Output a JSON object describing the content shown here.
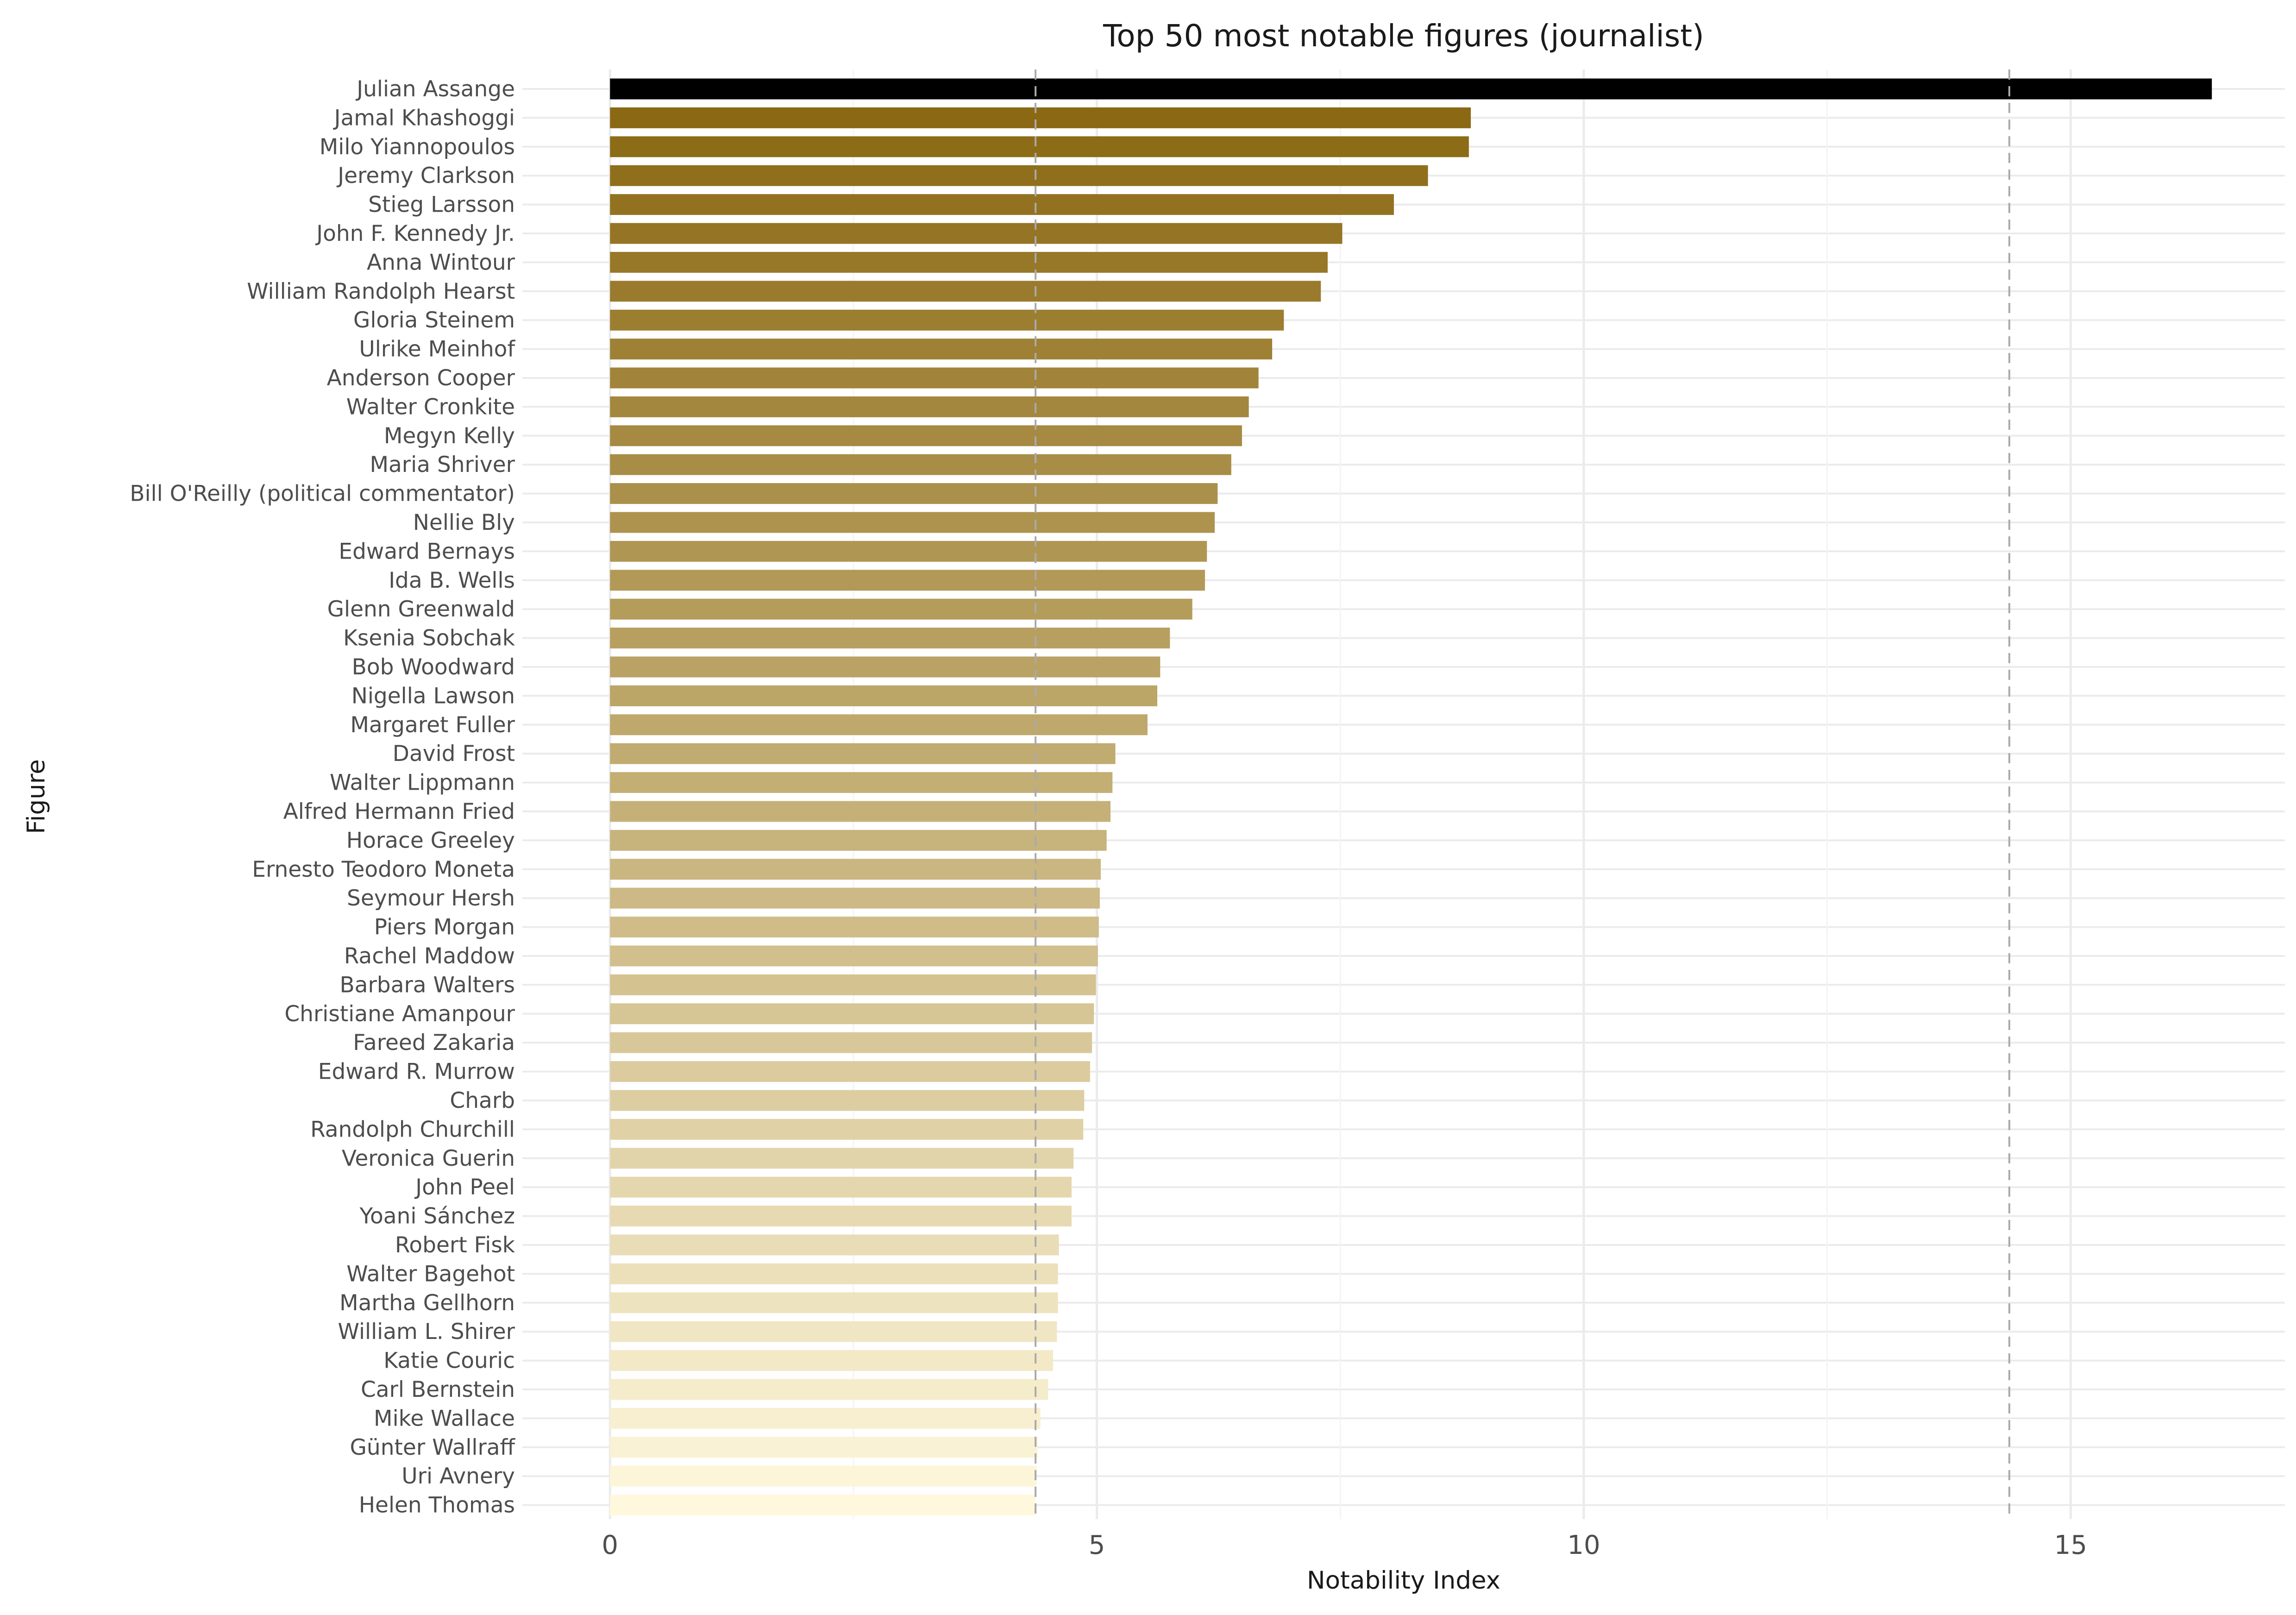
{
  "chart_data": {
    "type": "bar",
    "orientation": "horizontal",
    "title": "Top 50 most notable figures (journalist)",
    "xlabel": "Notability Index",
    "ylabel": "Figure",
    "xlim": [
      -0.9,
      17.2
    ],
    "x_ticks": [
      0,
      5,
      10,
      15
    ],
    "x_tick_labels": [
      "0",
      "5",
      "10",
      "15"
    ],
    "minor_x_gridlines": [
      2.5,
      7.5,
      12.5
    ],
    "reference_lines": [
      4.37,
      14.37
    ],
    "grid": true,
    "legend": "none",
    "colors": {
      "top_bar": "#000000",
      "gradient_dark": "#8B6914",
      "gradient_light": "#FFF8DC",
      "grid_major": "#ebebeb",
      "grid_minor": "#f4f4f4",
      "reference_line": "#aaaaaa"
    },
    "categories": [
      "Julian Assange",
      "Jamal Khashoggi",
      "Milo Yiannopoulos",
      "Jeremy Clarkson",
      "Stieg Larsson",
      "John F. Kennedy Jr.",
      "Anna Wintour",
      "William Randolph Hearst",
      "Gloria Steinem",
      "Ulrike Meinhof",
      "Anderson Cooper",
      "Walter Cronkite",
      "Megyn Kelly",
      "Maria Shriver",
      "Bill O'Reilly (political commentator)",
      "Nellie Bly",
      "Edward Bernays",
      "Ida B. Wells",
      "Glenn Greenwald",
      "Ksenia Sobchak",
      "Bob Woodward",
      "Nigella Lawson",
      "Margaret Fuller",
      "David Frost",
      "Walter Lippmann",
      "Alfred Hermann Fried",
      "Horace Greeley",
      "Ernesto Teodoro Moneta",
      "Seymour Hersh",
      "Piers Morgan",
      "Rachel Maddow",
      "Barbara Walters",
      "Christiane Amanpour",
      "Fareed Zakaria",
      "Edward R. Murrow",
      "Charb",
      "Randolph Churchill",
      "Veronica Guerin",
      "John Peel",
      "Yoani Sánchez",
      "Robert Fisk",
      "Walter Bagehot",
      "Martha Gellhorn",
      "William L. Shirer",
      "Katie Couric",
      "Carl Bernstein",
      "Mike Wallace",
      "Günter Wallraff",
      "Uri Avnery",
      "Helen Thomas"
    ],
    "values": [
      16.45,
      8.84,
      8.82,
      8.4,
      8.05,
      7.52,
      7.37,
      7.3,
      6.92,
      6.8,
      6.66,
      6.56,
      6.49,
      6.38,
      6.24,
      6.21,
      6.13,
      6.11,
      5.98,
      5.75,
      5.65,
      5.62,
      5.52,
      5.19,
      5.16,
      5.14,
      5.1,
      5.04,
      5.03,
      5.02,
      5.01,
      4.99,
      4.97,
      4.95,
      4.93,
      4.87,
      4.86,
      4.76,
      4.74,
      4.74,
      4.61,
      4.6,
      4.6,
      4.59,
      4.55,
      4.5,
      4.42,
      4.39,
      4.38,
      4.37
    ]
  }
}
